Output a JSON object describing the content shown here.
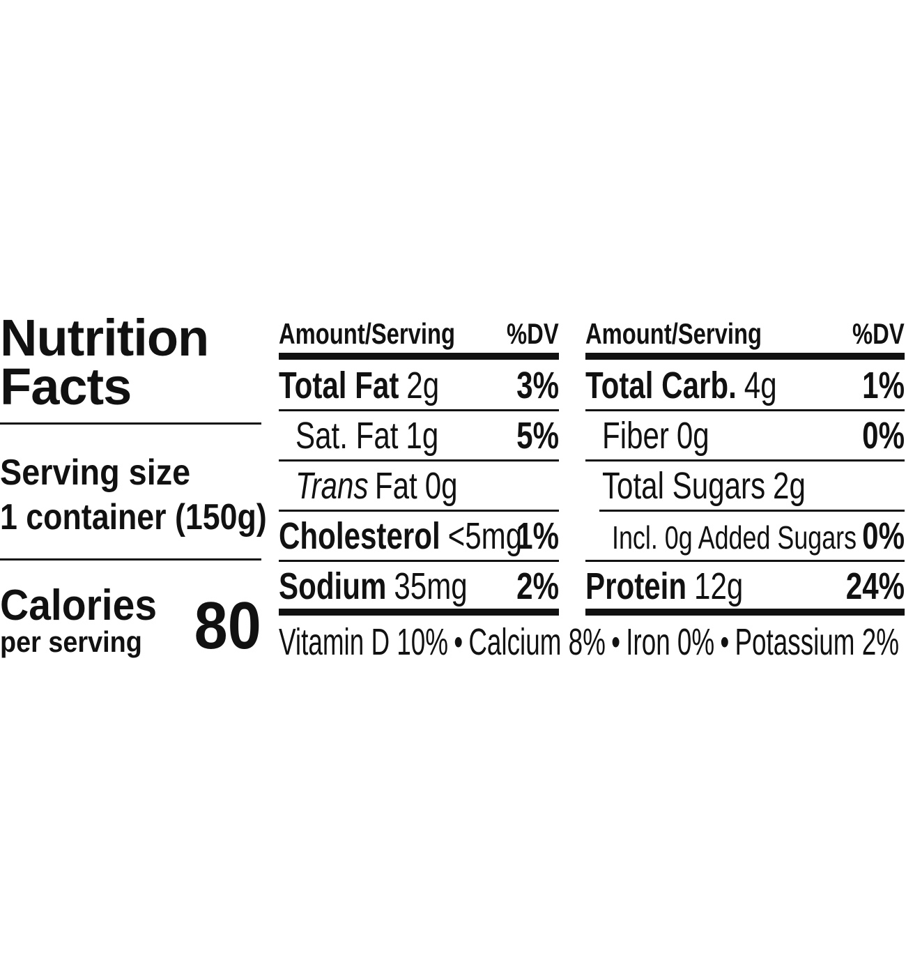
{
  "title_lines": [
    "Nutrition",
    "Facts"
  ],
  "serving": {
    "label": "Serving size",
    "value": "1 container (150g)"
  },
  "calories": {
    "label": "Calories",
    "sublabel": "per serving",
    "value": 80
  },
  "columns": [
    {
      "header": {
        "amount": "Amount/Serving",
        "dv": "%DV"
      },
      "rows": [
        {
          "name": "Total Fat",
          "amount": "2g",
          "dv": "3%",
          "bold": true
        },
        {
          "name": "Sat. Fat",
          "amount": "1g",
          "dv": "5%",
          "indent": 1
        },
        {
          "name_italic": "Trans",
          "name": "Fat",
          "amount": "0g",
          "indent": 1
        },
        {
          "name": "Cholesterol",
          "amount": "<5mg",
          "dv": "1%",
          "bold": true
        },
        {
          "name": "Sodium",
          "amount": "35mg",
          "dv": "2%",
          "bold": true
        }
      ]
    },
    {
      "header": {
        "amount": "Amount/Serving",
        "dv": "%DV"
      },
      "rows": [
        {
          "name": "Total Carb.",
          "amount": "4g",
          "dv": "1%",
          "bold": true
        },
        {
          "name": "Fiber",
          "amount": "0g",
          "dv": "0%",
          "indent": 1
        },
        {
          "name": "Total Sugars",
          "amount": "2g",
          "indent": 1
        },
        {
          "name": "Incl. 0g Added Sugars",
          "dv": "0%",
          "indent": 2
        },
        {
          "name": "Protein",
          "amount": "12g",
          "dv": "24%",
          "bold": true
        }
      ]
    }
  ],
  "vitamins": {
    "items": [
      "Vitamin D 10%",
      "Calcium 8%",
      "Iron 0%",
      "Potassium 2%"
    ],
    "separator": "•"
  }
}
